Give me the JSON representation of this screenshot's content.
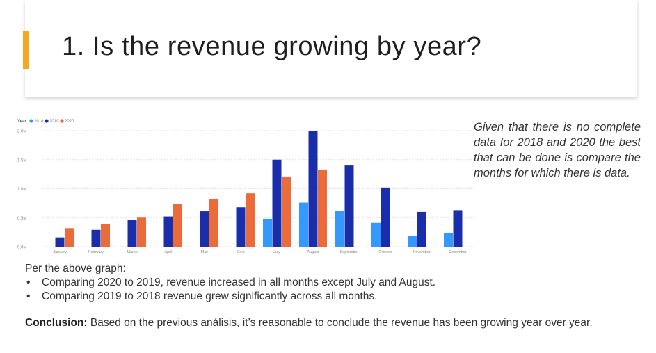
{
  "slide": {
    "title": "1. Is the revenue growing by year?",
    "accent_color": "#f5a623"
  },
  "side_note": "Given that there is no complete data for 2018 and 2020 the best that can be done is compare the months for which there is data.",
  "analysis": {
    "intro": "Per the above graph:",
    "bullets": [
      "Comparing 2020 to 2019, revenue increased in all months except July and August.",
      "Comparing 2019 to 2018 revenue grew significantly across all months."
    ],
    "bullet_char": "•",
    "conclusion_label": "Conclusion:",
    "conclusion_text": " Based on the previous análisis, it’s reasonable to conclude the revenue has been growing year over year."
  },
  "chart_data": {
    "type": "bar",
    "legend": {
      "title": "Year",
      "position": "top-left",
      "entries": [
        "2018",
        "2019",
        "2020"
      ]
    },
    "categories": [
      "January",
      "February",
      "March",
      "April",
      "May",
      "June",
      "July",
      "August",
      "September",
      "October",
      "November",
      "December"
    ],
    "series": [
      {
        "name": "2018",
        "color": "#3399ff",
        "values": [
          null,
          null,
          null,
          null,
          null,
          null,
          0.48,
          0.76,
          0.62,
          0.41,
          0.19,
          0.24
        ]
      },
      {
        "name": "2019",
        "color": "#1a2dab",
        "values": [
          0.16,
          0.29,
          0.46,
          0.52,
          0.61,
          0.68,
          1.5,
          2.0,
          1.4,
          1.02,
          0.6,
          0.63
        ]
      },
      {
        "name": "2020",
        "color": "#ec6b3b",
        "values": [
          0.32,
          0.39,
          0.5,
          0.74,
          0.82,
          0.92,
          1.21,
          1.33,
          null,
          null,
          null,
          null
        ]
      }
    ],
    "yticks": [
      {
        "value": 0,
        "label": "0.0M"
      },
      {
        "value": 0.5,
        "label": "0.5M"
      },
      {
        "value": 1.0,
        "label": "1.0M"
      },
      {
        "value": 1.5,
        "label": "1.5M"
      },
      {
        "value": 2.0,
        "label": "2.0M"
      }
    ],
    "ylim": [
      0,
      2.0
    ],
    "grid": true,
    "xlabel": "",
    "ylabel": ""
  }
}
